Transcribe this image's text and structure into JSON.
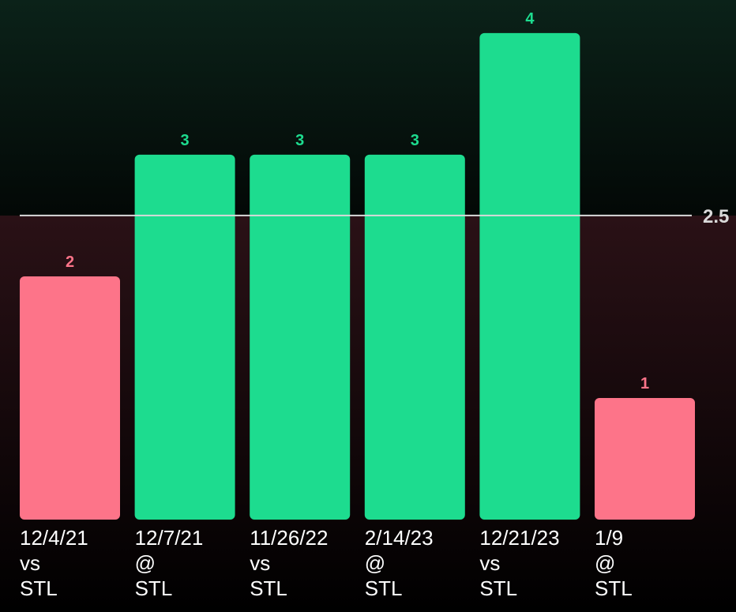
{
  "chart_data": {
    "type": "bar",
    "categories": [
      {
        "date": "12/4/21",
        "site": "vs",
        "opponent": "STL"
      },
      {
        "date": "12/7/21",
        "site": "@",
        "opponent": "STL"
      },
      {
        "date": "11/26/22",
        "site": "vs",
        "opponent": "STL"
      },
      {
        "date": "2/14/23",
        "site": "@",
        "opponent": "STL"
      },
      {
        "date": "12/21/23",
        "site": "vs",
        "opponent": "STL"
      },
      {
        "date": "1/9",
        "site": "@",
        "opponent": "STL"
      }
    ],
    "values": [
      2,
      3,
      3,
      3,
      4,
      1
    ],
    "value_labels": [
      "2",
      "3",
      "3",
      "3",
      "4",
      "1"
    ],
    "line": {
      "value": 2.5,
      "label": "2.5"
    },
    "ylim": [
      0,
      4.272
    ],
    "grid": false,
    "legend": "none",
    "colors": {
      "over": "#1ddc8f",
      "under": "#fd7489",
      "line": "#d9d9d9",
      "line_label": "#d9d9d9",
      "category_text": "#ffffff",
      "bg_over_top": "#0b2219",
      "bg_over_bottom": "#030806",
      "bg_under_top": "#2a1116",
      "bg_under_bottom": "#000000"
    }
  }
}
